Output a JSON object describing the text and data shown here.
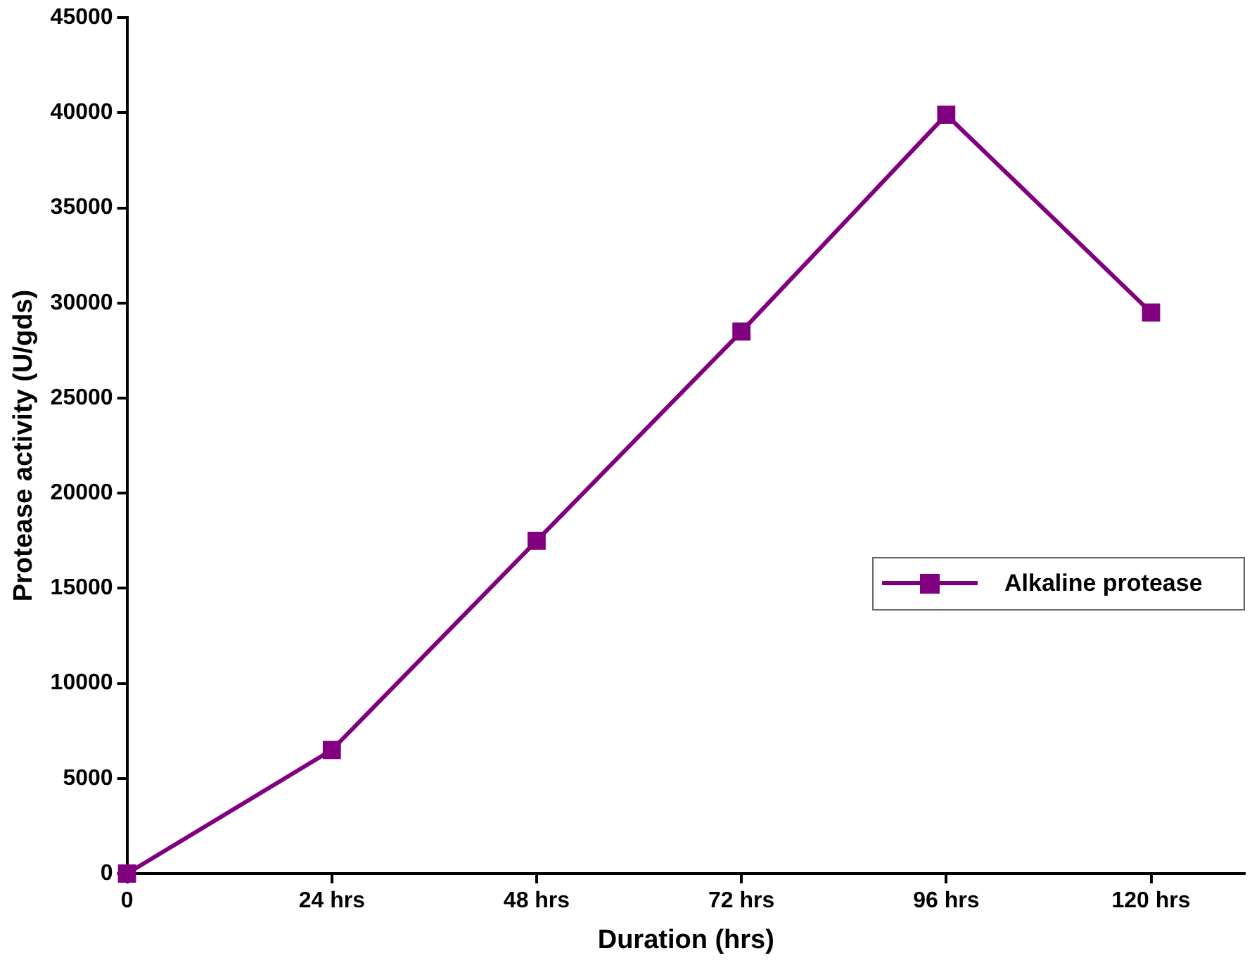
{
  "chart_data": {
    "type": "line",
    "xlabel": "Duration (hrs)",
    "ylabel": "Protease activity (U/gds)",
    "x": [
      0,
      24,
      48,
      72,
      96,
      120
    ],
    "xlim": [
      0,
      131
    ],
    "xticks": [
      0,
      {
        "value": 24,
        "label": "24 hrs"
      },
      {
        "value": 48,
        "label": "48 hrs"
      },
      {
        "value": 72,
        "label": "72 hrs"
      },
      {
        "value": 96,
        "label": "96 hrs"
      },
      {
        "value": 120,
        "label": "120 hrs"
      }
    ],
    "ylim": [
      0,
      45000
    ],
    "yticks": [
      0,
      5000,
      10000,
      15000,
      20000,
      25000,
      30000,
      35000,
      40000,
      45000
    ],
    "series": [
      {
        "name": "Alkaline protease",
        "color": "#800080",
        "values": [
          0,
          6500,
          17500,
          28500,
          39900,
          29500
        ]
      }
    ],
    "marker": "square",
    "line_style": "solid",
    "grid": false,
    "legend": "right"
  }
}
